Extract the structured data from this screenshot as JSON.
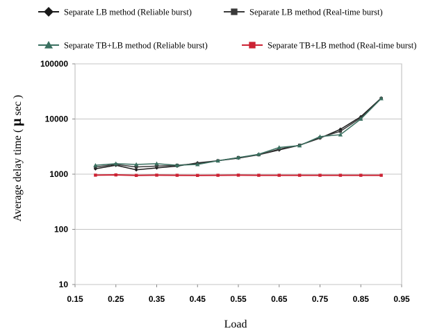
{
  "chart_data": {
    "type": "line",
    "title": "",
    "xlabel": "Load",
    "ylabel": "Average delay time ( μ sec )",
    "ylabel_parts": [
      "Average delay time (",
      "μ",
      "sec )"
    ],
    "xlim": [
      0.15,
      0.95
    ],
    "ylim": [
      10,
      100000
    ],
    "yscale": "log",
    "grid": "horizontal",
    "legend_position": "top",
    "xticks": [
      0.15,
      0.25,
      0.35,
      0.45,
      0.55,
      0.65,
      0.75,
      0.85,
      0.95
    ],
    "xtick_labels": [
      "0.15",
      "0.25",
      "0.35",
      "0.45",
      "0.55",
      "0.65",
      "0.75",
      "0.85",
      "0.95"
    ],
    "yticks": [
      10,
      100,
      1000,
      10000,
      100000
    ],
    "ytick_labels": [
      "10",
      "100",
      "1000",
      "10000",
      "100000"
    ],
    "x": [
      0.2,
      0.25,
      0.3,
      0.35,
      0.4,
      0.45,
      0.5,
      0.55,
      0.6,
      0.65,
      0.7,
      0.75,
      0.8,
      0.85,
      0.9
    ],
    "series": [
      {
        "name": "Separate LB method (Reliable burst)",
        "color": "#1a1a1a",
        "marker": "diamond",
        "values": [
          1250,
          1450,
          1200,
          1300,
          1400,
          1600,
          1750,
          1950,
          2250,
          2750,
          3350,
          4500,
          6500,
          11000,
          24000
        ]
      },
      {
        "name": "Separate LB method (Real-time burst)",
        "color": "#3a3a3a",
        "marker": "square",
        "values": [
          1350,
          1500,
          1350,
          1400,
          1450,
          1550,
          1750,
          2000,
          2250,
          2850,
          3350,
          4600,
          6000,
          10500,
          23500
        ]
      },
      {
        "name": "Separate TB+LB method (Reliable burst)",
        "color": "#3a7060",
        "marker": "triangle",
        "values": [
          1450,
          1550,
          1500,
          1550,
          1450,
          1500,
          1750,
          2000,
          2300,
          3050,
          3300,
          4800,
          5200,
          10000,
          23500
        ]
      },
      {
        "name": "Separate TB+LB method (Real-time burst)",
        "color": "#cc2233",
        "marker": "square",
        "values": [
          960,
          970,
          950,
          960,
          955,
          950,
          955,
          960,
          955,
          955,
          955,
          955,
          955,
          955,
          955
        ]
      }
    ]
  }
}
